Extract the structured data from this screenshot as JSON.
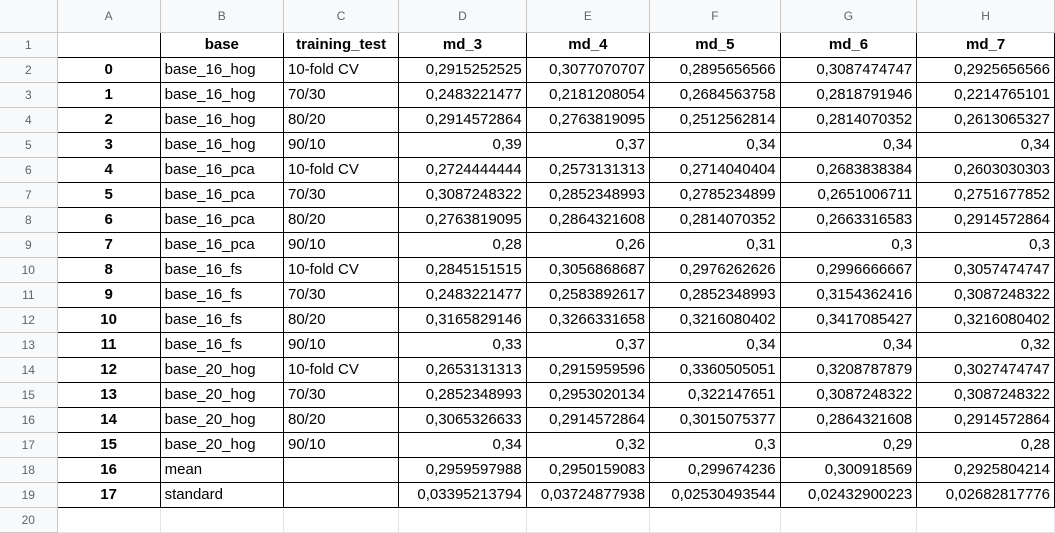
{
  "columns": [
    "A",
    "B",
    "C",
    "D",
    "E",
    "F",
    "G",
    "H"
  ],
  "header": [
    "",
    "base",
    "training_test",
    "md_3",
    "md_4",
    "md_5",
    "md_6",
    "md_7"
  ],
  "rows": [
    {
      "n": "2",
      "cells": [
        "0",
        "base_16_hog",
        "10-fold CV",
        "0,2915252525",
        "0,3077070707",
        "0,2895656566",
        "0,3087474747",
        "0,2925656566"
      ]
    },
    {
      "n": "3",
      "cells": [
        "1",
        "base_16_hog",
        "70/30",
        "0,2483221477",
        "0,2181208054",
        "0,2684563758",
        "0,2818791946",
        "0,2214765101"
      ]
    },
    {
      "n": "4",
      "cells": [
        "2",
        "base_16_hog",
        "80/20",
        "0,2914572864",
        "0,2763819095",
        "0,2512562814",
        "0,2814070352",
        "0,2613065327"
      ]
    },
    {
      "n": "5",
      "cells": [
        "3",
        "base_16_hog",
        "90/10",
        "0,39",
        "0,37",
        "0,34",
        "0,34",
        "0,34"
      ]
    },
    {
      "n": "6",
      "cells": [
        "4",
        "base_16_pca",
        "10-fold CV",
        "0,2724444444",
        "0,2573131313",
        "0,2714040404",
        "0,2683838384",
        "0,2603030303"
      ]
    },
    {
      "n": "7",
      "cells": [
        "5",
        "base_16_pca",
        "70/30",
        "0,3087248322",
        "0,2852348993",
        "0,2785234899",
        "0,2651006711",
        "0,2751677852"
      ]
    },
    {
      "n": "8",
      "cells": [
        "6",
        "base_16_pca",
        "80/20",
        "0,2763819095",
        "0,2864321608",
        "0,2814070352",
        "0,2663316583",
        "0,2914572864"
      ]
    },
    {
      "n": "9",
      "cells": [
        "7",
        "base_16_pca",
        "90/10",
        "0,28",
        "0,26",
        "0,31",
        "0,3",
        "0,3"
      ]
    },
    {
      "n": "10",
      "cells": [
        "8",
        "base_16_fs",
        "10-fold CV",
        "0,2845151515",
        "0,3056868687",
        "0,2976262626",
        "0,2996666667",
        "0,3057474747"
      ]
    },
    {
      "n": "11",
      "cells": [
        "9",
        "base_16_fs",
        "70/30",
        "0,2483221477",
        "0,2583892617",
        "0,2852348993",
        "0,3154362416",
        "0,3087248322"
      ]
    },
    {
      "n": "12",
      "cells": [
        "10",
        "base_16_fs",
        "80/20",
        "0,3165829146",
        "0,3266331658",
        "0,3216080402",
        "0,3417085427",
        "0,3216080402"
      ]
    },
    {
      "n": "13",
      "cells": [
        "11",
        "base_16_fs",
        "90/10",
        "0,33",
        "0,37",
        "0,34",
        "0,34",
        "0,32"
      ]
    },
    {
      "n": "14",
      "cells": [
        "12",
        "base_20_hog",
        "10-fold CV",
        "0,2653131313",
        "0,2915959596",
        "0,3360505051",
        "0,3208787879",
        "0,3027474747"
      ]
    },
    {
      "n": "15",
      "cells": [
        "13",
        "base_20_hog",
        "70/30",
        "0,2852348993",
        "0,2953020134",
        "0,322147651",
        "0,3087248322",
        "0,3087248322"
      ]
    },
    {
      "n": "16",
      "cells": [
        "14",
        "base_20_hog",
        "80/20",
        "0,3065326633",
        "0,2914572864",
        "0,3015075377",
        "0,2864321608",
        "0,2914572864"
      ]
    },
    {
      "n": "17",
      "cells": [
        "15",
        "base_20_hog",
        "90/10",
        "0,34",
        "0,32",
        "0,3",
        "0,29",
        "0,28"
      ]
    },
    {
      "n": "18",
      "cells": [
        "16",
        "mean",
        "",
        "0,2959597988",
        "0,2950159083",
        "0,299674236",
        "0,300918569",
        "0,2925804214"
      ]
    },
    {
      "n": "19",
      "cells": [
        "17",
        "standard",
        "",
        "0,03395213794",
        "0,03724877938",
        "0,02530493544",
        "0,02432900223",
        "0,02682817776"
      ]
    },
    {
      "n": "20",
      "cells": [
        "",
        "",
        "",
        "",
        "",
        "",
        "",
        ""
      ]
    }
  ],
  "header_row_number": "1"
}
